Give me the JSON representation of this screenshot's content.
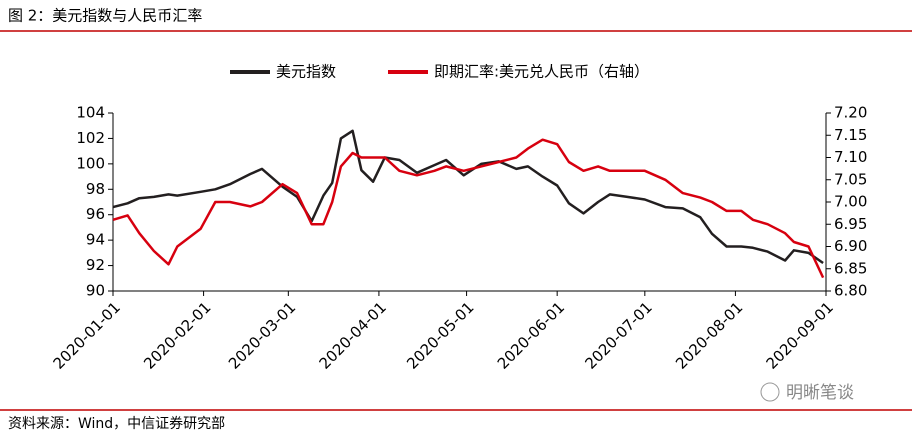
{
  "header": {
    "title": "图 2：美元指数与人民币汇率"
  },
  "footer": {
    "source": "资料来源：Wind，中信证券研究部",
    "watermark": "明晰笔谈"
  },
  "chart_data": {
    "type": "line",
    "x": [
      "2020-01-01",
      "2020-01-06",
      "2020-01-10",
      "2020-01-15",
      "2020-01-20",
      "2020-01-23",
      "2020-01-31",
      "2020-02-05",
      "2020-02-10",
      "2020-02-17",
      "2020-02-21",
      "2020-02-28",
      "2020-03-04",
      "2020-03-09",
      "2020-03-13",
      "2020-03-16",
      "2020-03-19",
      "2020-03-23",
      "2020-03-26",
      "2020-03-30",
      "2020-04-03",
      "2020-04-08",
      "2020-04-14",
      "2020-04-20",
      "2020-04-24",
      "2020-04-30",
      "2020-05-06",
      "2020-05-12",
      "2020-05-18",
      "2020-05-22",
      "2020-05-27",
      "2020-06-01",
      "2020-06-05",
      "2020-06-10",
      "2020-06-15",
      "2020-06-19",
      "2020-06-25",
      "2020-07-01",
      "2020-07-08",
      "2020-07-14",
      "2020-07-20",
      "2020-07-24",
      "2020-07-29",
      "2020-08-03",
      "2020-08-07",
      "2020-08-12",
      "2020-08-18",
      "2020-08-21",
      "2020-08-26",
      "2020-08-31"
    ],
    "series": [
      {
        "name": "美元指数",
        "color": "#231f20",
        "values": [
          96.6,
          96.9,
          97.3,
          97.4,
          97.6,
          97.5,
          97.8,
          98.0,
          98.4,
          99.2,
          99.6,
          98.2,
          97.4,
          95.5,
          97.5,
          98.5,
          102.0,
          102.6,
          99.5,
          98.6,
          100.5,
          100.3,
          99.3,
          99.9,
          100.3,
          99.1,
          100.0,
          100.2,
          99.6,
          99.8,
          99.0,
          98.3,
          96.9,
          96.1,
          97.0,
          97.6,
          97.4,
          97.2,
          96.6,
          96.5,
          95.8,
          94.5,
          93.5,
          93.5,
          93.4,
          93.1,
          92.4,
          93.2,
          93.0,
          92.2
        ]
      },
      {
        "name": "即期汇率:美元兑人民币（右轴）",
        "color": "#d7000f",
        "axis": "y2",
        "values": [
          6.96,
          6.97,
          6.93,
          6.89,
          6.86,
          6.9,
          6.94,
          7.0,
          7.0,
          6.99,
          7.0,
          7.04,
          7.02,
          6.95,
          6.95,
          7.0,
          7.08,
          7.11,
          7.1,
          7.1,
          7.1,
          7.07,
          7.06,
          7.07,
          7.08,
          7.07,
          7.08,
          7.09,
          7.1,
          7.12,
          7.14,
          7.13,
          7.09,
          7.07,
          7.08,
          7.07,
          7.07,
          7.07,
          7.05,
          7.02,
          7.01,
          7.0,
          6.98,
          6.98,
          6.96,
          6.95,
          6.93,
          6.91,
          6.9,
          6.83
        ]
      }
    ],
    "xlim": [
      "2020-01-01",
      "2020-09-01"
    ],
    "xticks": [
      "2020-01-01",
      "2020-02-01",
      "2020-03-01",
      "2020-04-01",
      "2020-05-01",
      "2020-06-01",
      "2020-07-01",
      "2020-08-01",
      "2020-09-01"
    ],
    "ylim": [
      90,
      104
    ],
    "yticks": [
      90,
      92,
      94,
      96,
      98,
      100,
      102,
      104
    ],
    "y2lim": [
      6.8,
      7.2
    ],
    "y2ticks": [
      {
        "value": 6.8,
        "label": "6.80"
      },
      6.85,
      {
        "value": 6.9,
        "label": "6.90"
      },
      6.95,
      {
        "value": 7.0,
        "label": "7.00"
      },
      7.05,
      {
        "value": 7.1,
        "label": "7.10"
      },
      7.15,
      {
        "value": 7.2,
        "label": "7.20"
      }
    ],
    "legend": "top"
  }
}
